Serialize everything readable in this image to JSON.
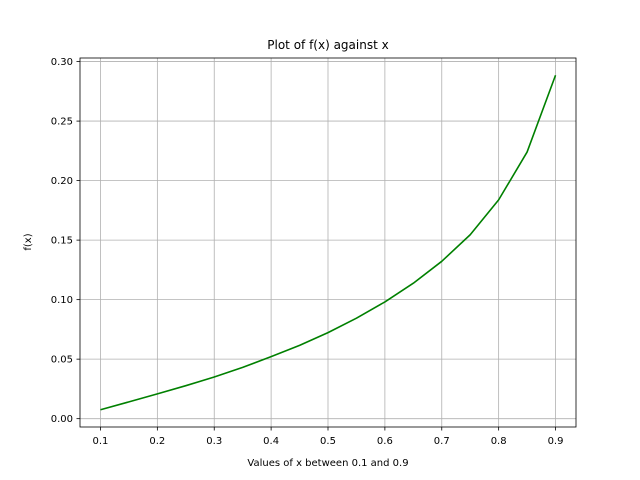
{
  "chart_data": {
    "type": "line",
    "title": "Plot of f(x) against x",
    "xlabel": "Values of x between 0.1 and 0.9",
    "ylabel": "f(x)",
    "xlim": [
      0.064,
      0.936
    ],
    "ylim": [
      -0.007,
      0.303
    ],
    "grid": true,
    "line_color": "#008000",
    "x_ticks": [
      0.1,
      0.2,
      0.3,
      0.4,
      0.5,
      0.6,
      0.7,
      0.8,
      0.9
    ],
    "x_tick_labels": [
      "0.1",
      "0.2",
      "0.3",
      "0.4",
      "0.5",
      "0.6",
      "0.7",
      "0.8",
      "0.9"
    ],
    "y_ticks": [
      0.0,
      0.05,
      0.1,
      0.15,
      0.2,
      0.25,
      0.3
    ],
    "y_tick_labels": [
      "0.00",
      "0.05",
      "0.10",
      "0.15",
      "0.20",
      "0.25",
      "0.30"
    ],
    "series": [
      {
        "x": [
          0.1,
          0.15,
          0.2,
          0.25,
          0.3,
          0.35,
          0.4,
          0.45,
          0.5,
          0.55,
          0.6,
          0.65,
          0.7,
          0.75,
          0.8,
          0.85,
          0.9
        ],
        "y": [
          0.0075,
          0.0141,
          0.0208,
          0.0277,
          0.035,
          0.0431,
          0.0521,
          0.0616,
          0.0723,
          0.0844,
          0.0981,
          0.1138,
          0.1322,
          0.1545,
          0.1838,
          0.224,
          0.2885
        ]
      }
    ]
  }
}
